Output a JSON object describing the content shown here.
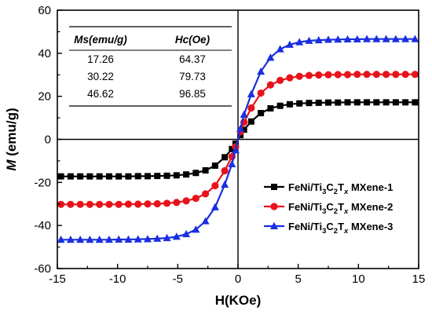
{
  "chart_data": {
    "type": "line",
    "xlabel": "H(KOe)",
    "ylabel_italic": "M",
    "ylabel_rest": " (emu/g)",
    "xlim": [
      -15,
      15
    ],
    "ylim": [
      -60,
      60
    ],
    "xticks": [
      -15,
      -10,
      -5,
      0,
      5,
      10,
      15
    ],
    "yticks": [
      -60,
      -40,
      -20,
      0,
      20,
      40,
      60
    ],
    "grid": false,
    "legend_position": "bottom-right",
    "inset_table": {
      "position": "top-left",
      "headers": [
        "Ms(emu/g)",
        "Hc(Oe)"
      ],
      "rows": [
        [
          "17.26",
          "64.37"
        ],
        [
          "30.22",
          "79.73"
        ],
        [
          "46.62",
          "96.85"
        ]
      ]
    },
    "series": [
      {
        "label_prefix": "FeNi/Ti",
        "label_sub1": "3",
        "label_mid1": "C",
        "label_sub2": "2",
        "label_mid2": "T",
        "label_sub3": "x",
        "label_suffix": " MXene-1",
        "color": "#000000",
        "marker": "square",
        "x": [
          -14.7,
          -13.9,
          -13.1,
          -12.3,
          -11.5,
          -10.7,
          -9.9,
          -9.1,
          -8.3,
          -7.5,
          -6.7,
          -5.9,
          -5.1,
          -4.3,
          -3.5,
          -2.7,
          -1.9,
          -1.1,
          -0.5,
          -0.2,
          0.2,
          0.5,
          1.1,
          1.9,
          2.7,
          3.5,
          4.3,
          5.1,
          5.9,
          6.7,
          7.5,
          8.3,
          9.1,
          9.9,
          10.7,
          11.5,
          12.3,
          13.1,
          13.9,
          14.7
        ],
        "y": [
          -17.2,
          -17.2,
          -17.2,
          -17.2,
          -17.2,
          -17.2,
          -17.2,
          -17.2,
          -17.1,
          -17.1,
          -17.0,
          -16.9,
          -16.7,
          -16.3,
          -15.6,
          -14.4,
          -12.2,
          -8.3,
          -4.5,
          -2.0,
          2.0,
          4.5,
          8.3,
          12.2,
          14.4,
          15.6,
          16.3,
          16.7,
          16.9,
          17.0,
          17.1,
          17.1,
          17.2,
          17.2,
          17.2,
          17.2,
          17.2,
          17.2,
          17.2,
          17.2
        ]
      },
      {
        "label_prefix": "FeNi/Ti",
        "label_sub1": "3",
        "label_mid1": "C",
        "label_sub2": "2",
        "label_mid2": "T",
        "label_sub3": "x",
        "label_suffix": " MXene-2",
        "color": "#e8131a",
        "marker": "circle",
        "x": [
          -14.7,
          -13.9,
          -13.1,
          -12.3,
          -11.5,
          -10.7,
          -9.9,
          -9.1,
          -8.3,
          -7.5,
          -6.7,
          -5.9,
          -5.1,
          -4.3,
          -3.5,
          -2.7,
          -1.9,
          -1.1,
          -0.5,
          -0.2,
          0.2,
          0.5,
          1.1,
          1.9,
          2.7,
          3.5,
          4.3,
          5.1,
          5.9,
          6.7,
          7.5,
          8.3,
          9.1,
          9.9,
          10.7,
          11.5,
          12.3,
          13.1,
          13.9,
          14.7
        ],
        "y": [
          -30.2,
          -30.2,
          -30.2,
          -30.2,
          -30.2,
          -30.2,
          -30.2,
          -30.1,
          -30.1,
          -30.0,
          -29.9,
          -29.7,
          -29.3,
          -28.6,
          -27.4,
          -25.3,
          -21.5,
          -14.6,
          -8.0,
          -3.5,
          3.5,
          8.0,
          14.6,
          21.5,
          25.3,
          27.4,
          28.6,
          29.3,
          29.7,
          29.9,
          30.0,
          30.1,
          30.1,
          30.2,
          30.2,
          30.2,
          30.2,
          30.2,
          30.2,
          30.2
        ]
      },
      {
        "label_prefix": "FeNi/Ti",
        "label_sub1": "3",
        "label_mid1": "C",
        "label_sub2": "2",
        "label_mid2": "T",
        "label_sub3": "x",
        "label_suffix": " MXene-3",
        "color": "#1a2fe0",
        "marker": "triangle",
        "x": [
          -14.7,
          -13.9,
          -13.1,
          -12.3,
          -11.5,
          -10.7,
          -9.9,
          -9.1,
          -8.3,
          -7.5,
          -6.7,
          -5.9,
          -5.1,
          -4.3,
          -3.5,
          -2.7,
          -1.9,
          -1.1,
          -0.5,
          -0.2,
          0.2,
          0.5,
          1.1,
          1.9,
          2.7,
          3.5,
          4.3,
          5.1,
          5.9,
          6.7,
          7.5,
          8.3,
          9.1,
          9.9,
          10.7,
          11.5,
          12.3,
          13.1,
          13.9,
          14.7
        ],
        "y": [
          -46.6,
          -46.6,
          -46.6,
          -46.6,
          -46.6,
          -46.6,
          -46.5,
          -46.5,
          -46.4,
          -46.3,
          -46.1,
          -45.8,
          -45.2,
          -44.0,
          -41.9,
          -38.0,
          -31.5,
          -21.0,
          -11.5,
          -5.0,
          5.0,
          11.5,
          21.0,
          31.5,
          38.0,
          41.9,
          44.0,
          45.2,
          45.8,
          46.1,
          46.3,
          46.4,
          46.5,
          46.5,
          46.6,
          46.6,
          46.6,
          46.6,
          46.6,
          46.6
        ]
      }
    ]
  }
}
